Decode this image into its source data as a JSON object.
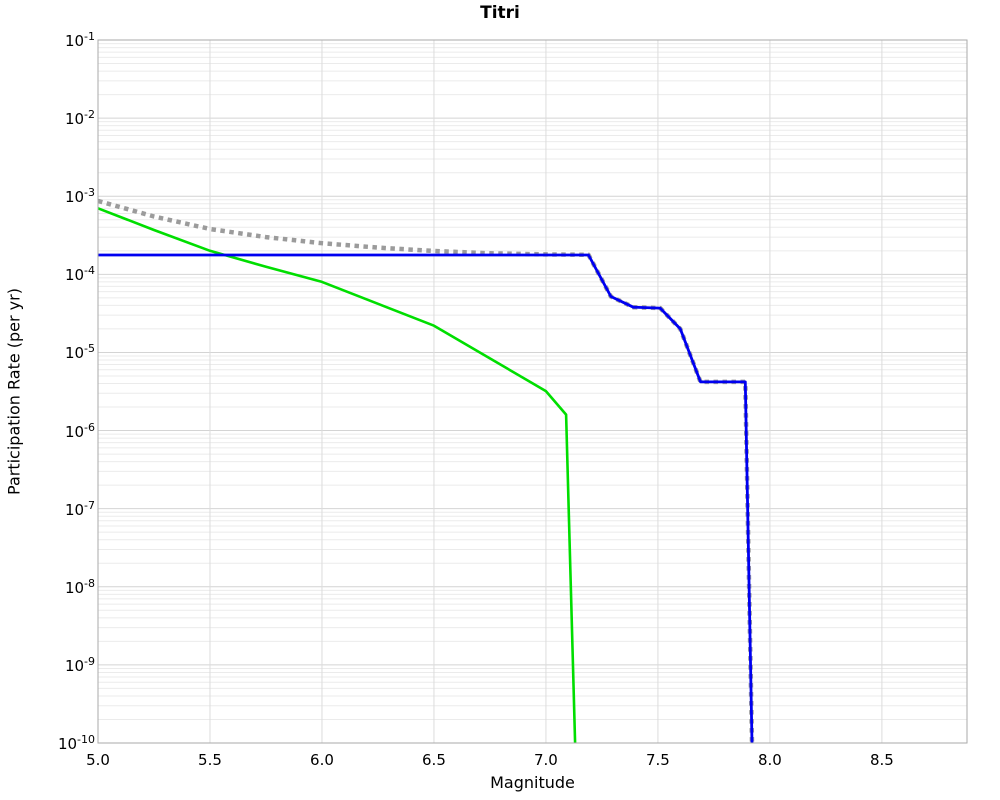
{
  "chart_data": {
    "type": "line",
    "title": "Titri",
    "xlabel": "Magnitude",
    "ylabel": "Participation Rate (per yr)",
    "xlim": [
      5.0,
      8.88
    ],
    "ylim_log10": [
      -10,
      -1
    ],
    "x_ticks": [
      5.0,
      5.5,
      6.0,
      6.5,
      7.0,
      7.5,
      8.0,
      8.5
    ],
    "x_tick_labels": [
      "5.0",
      "5.5",
      "6.0",
      "6.5",
      "7.0",
      "7.5",
      "8.0",
      "8.5"
    ],
    "y_tick_exponents": [
      -1,
      -2,
      -3,
      -4,
      -5,
      -6,
      -7,
      -8,
      -9,
      -10
    ],
    "grid": true,
    "legend": "none",
    "colors": {
      "frame": "#aaaaaa",
      "grid_major": "#d4d4d4",
      "grid_minor": "#ebebeb",
      "grid_vertical": "#dcdcdc",
      "background": "#ffffff"
    },
    "series": [
      {
        "name": "green-solid-curve",
        "color": "#00de00",
        "style": "solid",
        "width": 2.6,
        "points": [
          [
            5.0,
            0.0007
          ],
          [
            5.25,
            0.00037
          ],
          [
            5.5,
            0.0002
          ],
          [
            5.75,
            0.000125
          ],
          [
            6.0,
            8e-05
          ],
          [
            6.25,
            4.2e-05
          ],
          [
            6.5,
            2.2e-05
          ],
          [
            6.75,
            8.4e-06
          ],
          [
            7.0,
            3.2e-06
          ],
          [
            7.09,
            1.6e-06
          ],
          [
            7.13,
            1e-10
          ]
        ]
      },
      {
        "name": "gray-dotted-curve",
        "color": "#9b9b9b",
        "style": "dotted",
        "width": 4.5,
        "points": [
          [
            5.0,
            0.00087
          ],
          [
            5.25,
            0.00055
          ],
          [
            5.5,
            0.00038
          ],
          [
            5.75,
            0.0003
          ],
          [
            6.0,
            0.00025
          ],
          [
            6.25,
            0.00022
          ],
          [
            6.5,
            0.000199
          ],
          [
            6.75,
            0.000186
          ],
          [
            7.0,
            0.00018
          ],
          [
            7.19,
            0.000178
          ],
          [
            7.29,
            5.2e-05
          ],
          [
            7.39,
            3.8e-05
          ],
          [
            7.51,
            3.7e-05
          ],
          [
            7.6,
            2e-05
          ],
          [
            7.69,
            4.2e-06
          ],
          [
            7.89,
            4.2e-06
          ],
          [
            7.92,
            1e-10
          ]
        ]
      },
      {
        "name": "blue-solid-curve",
        "color": "#0000f0",
        "style": "solid",
        "width": 2.8,
        "points": [
          [
            5.0,
            0.000177
          ],
          [
            7.19,
            0.000177
          ],
          [
            7.29,
            5.2e-05
          ],
          [
            7.39,
            3.8e-05
          ],
          [
            7.51,
            3.7e-05
          ],
          [
            7.6,
            2e-05
          ],
          [
            7.69,
            4.2e-06
          ],
          [
            7.89,
            4.2e-06
          ],
          [
            7.92,
            1e-10
          ]
        ]
      }
    ]
  }
}
